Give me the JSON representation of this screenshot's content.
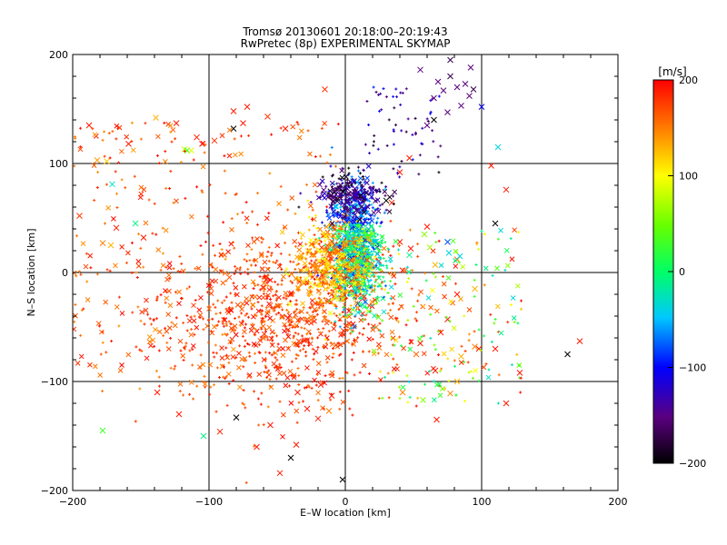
{
  "chart_data": {
    "type": "scatter",
    "title": "Tromsø 20130601 20:18:00–20:19:43",
    "subtitle": "RwPretec (8p) EXPERIMENTAL SKYMAP",
    "xlabel": "E–W location [km]",
    "ylabel": "N–S location [km]",
    "xlim": [
      -200,
      200
    ],
    "ylim": [
      -200,
      200
    ],
    "xticks": [
      -200,
      -100,
      0,
      100,
      200
    ],
    "yticks": [
      -200,
      -100,
      0,
      100,
      200
    ],
    "x_tick_labels": [
      "−200",
      "−100",
      "0",
      "100",
      "200"
    ],
    "y_tick_labels": [
      "−200",
      "−100",
      "0",
      "100",
      "200"
    ],
    "grid": true,
    "colorbar": {
      "label": "[m/s]",
      "min": -200,
      "max": 200,
      "ticks": [
        200,
        100,
        0,
        -100,
        -200
      ],
      "tick_labels": [
        "200",
        "100",
        "0",
        "−100",
        "−200"
      ],
      "colormap": "black-purple-blue-cyan-green-yellow-orange-red"
    },
    "marker_types": [
      "small cross",
      "x"
    ],
    "points": [
      [
        -195,
        52,
        180
      ],
      [
        -188,
        135,
        190
      ],
      [
        -182,
        103,
        140
      ],
      [
        -178,
        27,
        150
      ],
      [
        -175,
        102,
        120
      ],
      [
        -172,
        25,
        130
      ],
      [
        -171,
        81,
        -30
      ],
      [
        -168,
        41,
        190
      ],
      [
        -159,
        118,
        190
      ],
      [
        -154,
        45,
        -10
      ],
      [
        -148,
        32,
        190
      ],
      [
        -139,
        142,
        130
      ],
      [
        -124,
        137,
        190
      ],
      [
        -118,
        113,
        80
      ],
      [
        -116,
        112,
        30
      ],
      [
        -113,
        112,
        90
      ],
      [
        -109,
        124,
        190
      ],
      [
        -105,
        118,
        190
      ],
      [
        -96,
        121,
        180
      ],
      [
        -82,
        132,
        -200
      ],
      [
        -82,
        148,
        190
      ],
      [
        -75,
        137,
        190
      ],
      [
        -72,
        152,
        190
      ],
      [
        -57,
        143,
        180
      ],
      [
        -44,
        132,
        190
      ],
      [
        -15,
        168,
        180
      ],
      [
        -138,
        -110,
        190
      ],
      [
        -122,
        -130,
        190
      ],
      [
        -80,
        -133,
        -200
      ],
      [
        -40,
        -170,
        -200
      ],
      [
        -48,
        -184,
        190
      ],
      [
        -36,
        -158,
        190
      ],
      [
        -28,
        -125,
        190
      ],
      [
        -20,
        -134,
        190
      ],
      [
        -12,
        -127,
        150
      ],
      [
        -2,
        -190,
        -200
      ],
      [
        -178,
        -145,
        30
      ],
      [
        -104,
        -150,
        -10
      ],
      [
        -92,
        -146,
        190
      ],
      [
        -65,
        -160,
        190
      ],
      [
        -55,
        -140,
        190
      ],
      [
        -35,
        -110,
        190
      ],
      [
        -18,
        -103,
        190
      ],
      [
        -10,
        -113,
        190
      ],
      [
        42,
        -110,
        150
      ],
      [
        57,
        -117,
        60
      ],
      [
        67,
        -135,
        190
      ],
      [
        77,
        -111,
        150
      ],
      [
        82,
        -100,
        130
      ],
      [
        85,
        -77,
        130
      ],
      [
        95,
        -68,
        150
      ],
      [
        98,
        -70,
        190
      ],
      [
        110,
        -70,
        190
      ],
      [
        118,
        -120,
        190
      ],
      [
        128,
        -92,
        190
      ],
      [
        172,
        -63,
        190
      ],
      [
        163,
        -75,
        -200
      ],
      [
        55,
        186,
        -150
      ],
      [
        65,
        160,
        -150
      ],
      [
        68,
        175,
        -150
      ],
      [
        72,
        167,
        -150
      ],
      [
        77,
        180,
        -170
      ],
      [
        82,
        170,
        -150
      ],
      [
        88,
        173,
        -150
      ],
      [
        91,
        162,
        -150
      ],
      [
        94,
        168,
        -170
      ],
      [
        85,
        153,
        -150
      ],
      [
        75,
        147,
        -150
      ],
      [
        65,
        140,
        -200
      ],
      [
        60,
        135,
        -150
      ],
      [
        92,
        188,
        -150
      ],
      [
        77,
        195,
        -170
      ],
      [
        100,
        152,
        -100
      ],
      [
        112,
        115,
        -40
      ],
      [
        118,
        76,
        190
      ],
      [
        110,
        45,
        -200
      ],
      [
        107,
        98,
        190
      ],
      [
        75,
        28,
        -80
      ],
      [
        82,
        12,
        160
      ],
      [
        84,
        15,
        -40
      ],
      [
        76,
        18,
        -40
      ],
      [
        66,
        7,
        130
      ],
      [
        62,
        23,
        70
      ],
      [
        58,
        35,
        60
      ],
      [
        48,
        22,
        190
      ],
      [
        47,
        16,
        -10
      ],
      [
        42,
        2,
        190
      ],
      [
        40,
        28,
        190
      ],
      [
        34,
        64,
        190
      ],
      [
        30,
        66,
        -200
      ],
      [
        40,
        92,
        190
      ],
      [
        47,
        105,
        190
      ],
      [
        60,
        42,
        190
      ],
      [
        95,
        -15,
        130
      ],
      [
        82,
        -20,
        190
      ],
      [
        75,
        -43,
        190
      ],
      [
        70,
        -55,
        190
      ],
      [
        55,
        -65,
        190
      ],
      [
        52,
        -75,
        160
      ],
      [
        66,
        -90,
        190
      ]
    ]
  }
}
